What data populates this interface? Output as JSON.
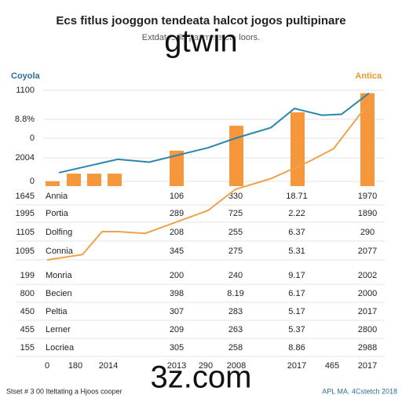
{
  "chart_data": {
    "type": "bar-line",
    "title": "Ecs fitlus jooggon tendeata halcot jogos pultipinare",
    "subtitle": "Extdates ile   pat    m   se ete loors.",
    "watermarks": [
      "gtwin",
      "3z.com"
    ],
    "left_label": "Coyola",
    "right_label": "Antica",
    "left_axis_labels": [
      "1100",
      "8.8%",
      "0",
      "2004",
      "0"
    ],
    "bars": {
      "color": "#f5973a",
      "x": [
        67,
        94,
        120,
        146,
        225,
        301,
        379,
        468
      ],
      "values": [
        5,
        13,
        13,
        13,
        37,
        63,
        77,
        97
      ]
    },
    "series": [
      {
        "color": "#2b86ad",
        "x": [
          75,
          150,
          190,
          265,
          300,
          345,
          375,
          410,
          435,
          470
        ],
        "values": [
          14,
          28,
          25,
          40,
          50,
          61,
          81,
          74,
          75,
          97
        ]
      },
      {
        "color": "#f0a24a",
        "axis": "y2",
        "x": [
          60,
          105,
          130,
          150,
          185,
          265,
          300,
          345,
          395,
          425,
          470
        ],
        "values": [
          4,
          7,
          20,
          20,
          19,
          32,
          44,
          50,
          60,
          67,
          93
        ]
      }
    ],
    "xlim": [
      0,
      512
    ],
    "ylim": [
      0,
      100
    ],
    "y2lim": [
      0,
      100
    ],
    "table": [
      [
        "1645",
        "Annia",
        "106",
        "330",
        "18.71",
        "1970"
      ],
      [
        "1995",
        "Portia",
        "289",
        "725",
        "2.22",
        "1890"
      ],
      [
        "1105",
        "Dolfing",
        "208",
        "255",
        "6.37",
        "290"
      ],
      [
        "1095",
        "Connia",
        "345",
        "275",
        "5.31",
        "2077"
      ],
      [
        "199",
        "Monria",
        "200",
        "240",
        "9.17",
        "2002"
      ],
      [
        "800",
        "Becien",
        "398",
        "8.19",
        "6.17",
        "2000"
      ],
      [
        "450",
        "Peltia",
        "307",
        "283",
        "5.17",
        "2017"
      ],
      [
        "455",
        "Lerner",
        "209",
        "263",
        "5.37",
        "2800"
      ],
      [
        "155",
        "Locriea",
        "305",
        "258",
        "8.86",
        "2988"
      ]
    ],
    "x_axis_labels": [
      "0",
      "180",
      "2014",
      "2013",
      "290",
      "2008",
      "2017",
      "465",
      "2017"
    ],
    "footer_left": "Stset # 3 00 Iteltating a Hjoos cooper",
    "footer_right": "APL MA. 4Cstetch 2018"
  }
}
